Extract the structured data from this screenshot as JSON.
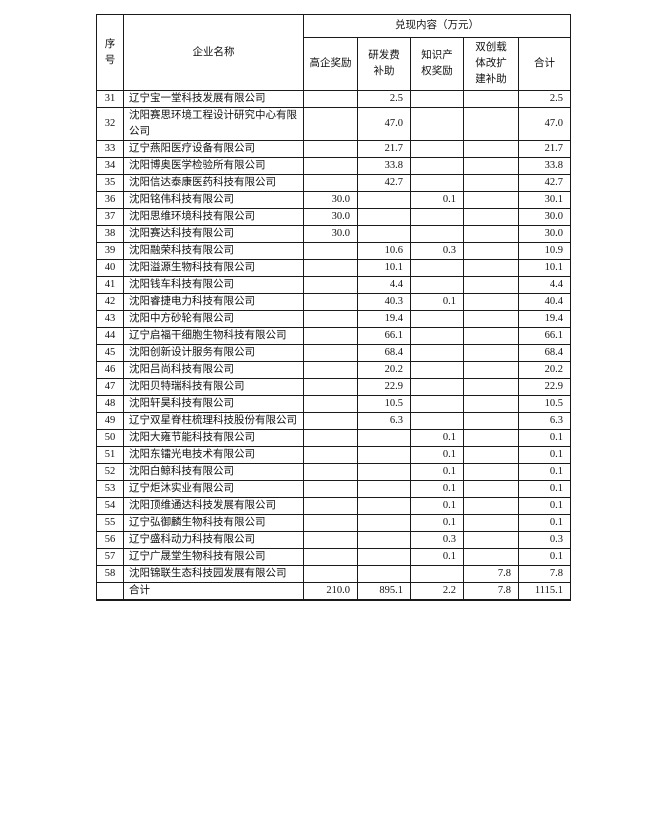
{
  "document": {
    "table": {
      "header": {
        "serial": "序\n号",
        "company": "企业名称",
        "group": "兑现内容（万元）",
        "columns": [
          "高企奖励",
          "研发费\n补助",
          "知识产\n权奖励",
          "双创载\n体改扩\n建补助",
          "合计"
        ]
      },
      "rows": [
        {
          "no": "31",
          "company": "辽宁宝一堂科技发展有限公司",
          "values": [
            "",
            "2.5",
            "",
            "",
            "2.5"
          ]
        },
        {
          "no": "32",
          "company": "沈阳赛思环境工程设计研究中心有限公司",
          "values": [
            "",
            "47.0",
            "",
            "",
            "47.0"
          ]
        },
        {
          "no": "33",
          "company": "辽宁燕阳医疗设备有限公司",
          "values": [
            "",
            "21.7",
            "",
            "",
            "21.7"
          ]
        },
        {
          "no": "34",
          "company": "沈阳博奥医学检验所有限公司",
          "values": [
            "",
            "33.8",
            "",
            "",
            "33.8"
          ]
        },
        {
          "no": "35",
          "company": "沈阳信达泰康医药科技有限公司",
          "values": [
            "",
            "42.7",
            "",
            "",
            "42.7"
          ]
        },
        {
          "no": "36",
          "company": "沈阳铭伟科技有限公司",
          "values": [
            "30.0",
            "",
            "0.1",
            "",
            "30.1"
          ]
        },
        {
          "no": "37",
          "company": "沈阳思维环境科技有限公司",
          "values": [
            "30.0",
            "",
            "",
            "",
            "30.0"
          ]
        },
        {
          "no": "38",
          "company": "沈阳赛达科技有限公司",
          "values": [
            "30.0",
            "",
            "",
            "",
            "30.0"
          ]
        },
        {
          "no": "39",
          "company": "沈阳融荣科技有限公司",
          "values": [
            "",
            "10.6",
            "0.3",
            "",
            "10.9"
          ]
        },
        {
          "no": "40",
          "company": "沈阳溢源生物科技有限公司",
          "values": [
            "",
            "10.1",
            "",
            "",
            "10.1"
          ]
        },
        {
          "no": "41",
          "company": "沈阳钱车科技有限公司",
          "values": [
            "",
            "4.4",
            "",
            "",
            "4.4"
          ]
        },
        {
          "no": "42",
          "company": "沈阳睿捷电力科技有限公司",
          "values": [
            "",
            "40.3",
            "0.1",
            "",
            "40.4"
          ]
        },
        {
          "no": "43",
          "company": "沈阳中方砂轮有限公司",
          "values": [
            "",
            "19.4",
            "",
            "",
            "19.4"
          ]
        },
        {
          "no": "44",
          "company": "辽宁启福干细胞生物科技有限公司",
          "values": [
            "",
            "66.1",
            "",
            "",
            "66.1"
          ]
        },
        {
          "no": "45",
          "company": "沈阳创新设计服务有限公司",
          "values": [
            "",
            "68.4",
            "",
            "",
            "68.4"
          ]
        },
        {
          "no": "46",
          "company": "沈阳吕尚科技有限公司",
          "values": [
            "",
            "20.2",
            "",
            "",
            "20.2"
          ]
        },
        {
          "no": "47",
          "company": "沈阳贝特瑞科技有限公司",
          "values": [
            "",
            "22.9",
            "",
            "",
            "22.9"
          ]
        },
        {
          "no": "48",
          "company": "沈阳轩昊科技有限公司",
          "values": [
            "",
            "10.5",
            "",
            "",
            "10.5"
          ]
        },
        {
          "no": "49",
          "company": "辽宁双星脊柱梳理科技股份有限公司",
          "values": [
            "",
            "6.3",
            "",
            "",
            "6.3"
          ]
        },
        {
          "no": "50",
          "company": "沈阳大雍节能科技有限公司",
          "values": [
            "",
            "",
            "0.1",
            "",
            "0.1"
          ]
        },
        {
          "no": "51",
          "company": "沈阳东镭光电技术有限公司",
          "values": [
            "",
            "",
            "0.1",
            "",
            "0.1"
          ]
        },
        {
          "no": "52",
          "company": "沈阳白鲸科技有限公司",
          "values": [
            "",
            "",
            "0.1",
            "",
            "0.1"
          ]
        },
        {
          "no": "53",
          "company": "辽宁炬沐实业有限公司",
          "values": [
            "",
            "",
            "0.1",
            "",
            "0.1"
          ]
        },
        {
          "no": "54",
          "company": "沈阳顶维通达科技发展有限公司",
          "values": [
            "",
            "",
            "0.1",
            "",
            "0.1"
          ]
        },
        {
          "no": "55",
          "company": "辽宁弘御麟生物科技有限公司",
          "values": [
            "",
            "",
            "0.1",
            "",
            "0.1"
          ]
        },
        {
          "no": "56",
          "company": "辽宁盛科动力科技有限公司",
          "values": [
            "",
            "",
            "0.3",
            "",
            "0.3"
          ]
        },
        {
          "no": "57",
          "company": "辽宁广晟堂生物科技有限公司",
          "values": [
            "",
            "",
            "0.1",
            "",
            "0.1"
          ]
        },
        {
          "no": "58",
          "company": "沈阳锦联生态科技园发展有限公司",
          "values": [
            "",
            "",
            "",
            "7.8",
            "7.8"
          ]
        }
      ],
      "total_row": {
        "no": "",
        "label": "合计",
        "values": [
          "210.0",
          "895.1",
          "2.2",
          "7.8",
          "1115.1"
        ]
      }
    }
  }
}
